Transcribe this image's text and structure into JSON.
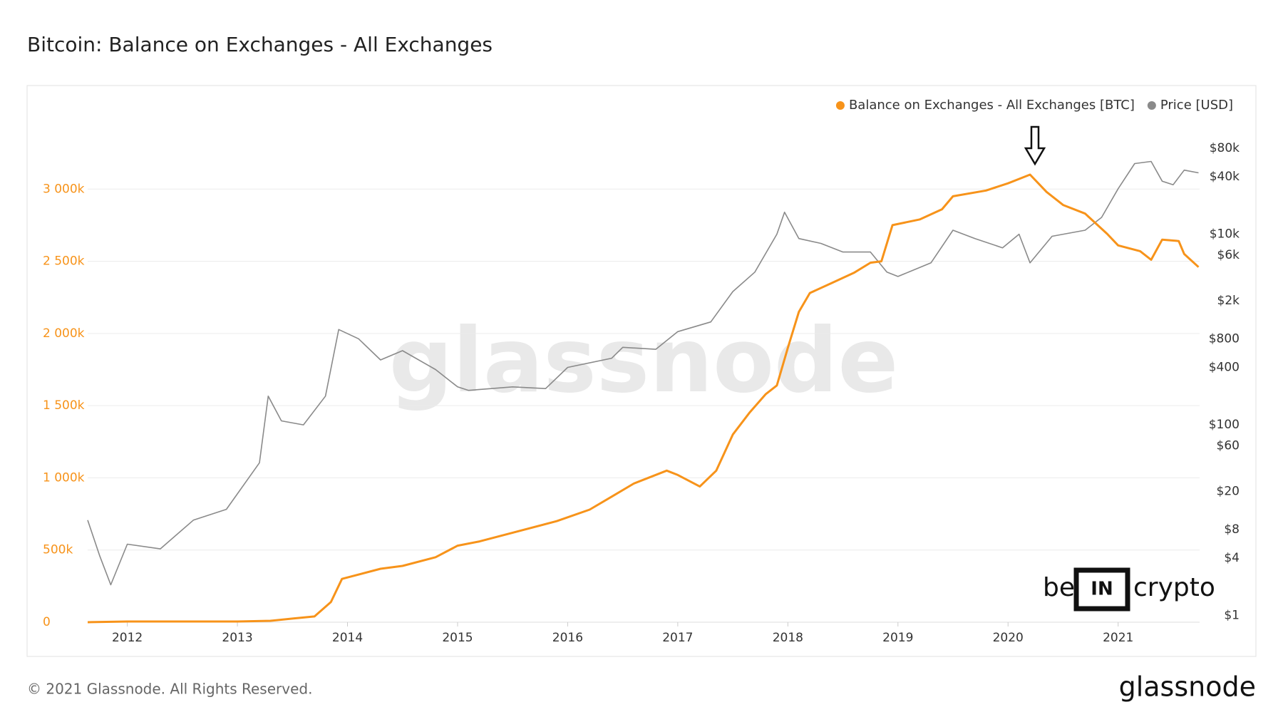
{
  "chart_data": {
    "type": "line",
    "title": "Bitcoin: Balance on Exchanges - All Exchanges",
    "xlim": [
      2011.64,
      2021.74
    ],
    "xticks": [
      2012,
      2013,
      2014,
      2015,
      2016,
      2017,
      2018,
      2019,
      2020,
      2021
    ],
    "ylim": [
      0,
      3500000
    ],
    "yticks": [
      0,
      {
        "value": 500000,
        "label": "500k"
      },
      {
        "value": 1000000,
        "label": "1 000k"
      },
      {
        "value": 1500000,
        "label": "1 500k"
      },
      {
        "value": 2000000,
        "label": "2 000k"
      },
      {
        "value": 2500000,
        "label": "2 500k"
      },
      {
        "value": 3000000,
        "label": "3 000k"
      }
    ],
    "y2lim": [
      0.85,
      170000
    ],
    "y2log": true,
    "y2ticks": [
      {
        "value": 1,
        "label": "$1"
      },
      {
        "value": 4,
        "label": "$4"
      },
      {
        "value": 8,
        "label": "$8"
      },
      {
        "value": 20,
        "label": "$20"
      },
      {
        "value": 60,
        "label": "$60"
      },
      {
        "value": 100,
        "label": "$100"
      },
      {
        "value": 400,
        "label": "$400"
      },
      {
        "value": 800,
        "label": "$800"
      },
      {
        "value": 2000,
        "label": "$2k"
      },
      {
        "value": 6000,
        "label": "$6k"
      },
      {
        "value": 10000,
        "label": "$10k"
      },
      {
        "value": 40000,
        "label": "$40k"
      },
      {
        "value": 80000,
        "label": "$80k"
      }
    ],
    "grid": true,
    "series": [
      {
        "name": "Balance on Exchanges - All Exchanges [BTC]",
        "color": "#f7931a",
        "x": [
          2011.64,
          2012.0,
          2013.0,
          2013.3,
          2013.5,
          2013.7,
          2013.85,
          2013.95,
          2014.0,
          2014.3,
          2014.5,
          2014.8,
          2015.0,
          2015.2,
          2015.5,
          2015.9,
          2016.2,
          2016.4,
          2016.6,
          2016.9,
          2017.0,
          2017.2,
          2017.35,
          2017.5,
          2017.65,
          2017.8,
          2017.9,
          2018.0,
          2018.1,
          2018.2,
          2018.4,
          2018.6,
          2018.75,
          2018.85,
          2018.95,
          2019.2,
          2019.4,
          2019.5,
          2019.8,
          2020.0,
          2020.2,
          2020.35,
          2020.5,
          2020.7,
          2020.9,
          2021.0,
          2021.2,
          2021.3,
          2021.4,
          2021.55,
          2021.6,
          2021.73
        ],
        "values": [
          0,
          5000,
          5000,
          10000,
          25000,
          40000,
          140000,
          300000,
          310000,
          370000,
          390000,
          450000,
          530000,
          560000,
          620000,
          700000,
          780000,
          870000,
          960000,
          1050000,
          1020000,
          940000,
          1050000,
          1300000,
          1450000,
          1580000,
          1640000,
          1900000,
          2150000,
          2280000,
          2350000,
          2420000,
          2490000,
          2500000,
          2750000,
          2790000,
          2860000,
          2950000,
          2990000,
          3040000,
          3100000,
          2980000,
          2890000,
          2830000,
          2690000,
          2610000,
          2570000,
          2510000,
          2650000,
          2640000,
          2550000,
          2460000
        ]
      },
      {
        "name": "Price [USD]",
        "color": "#8a8a8a",
        "axis": "y2",
        "x": [
          2011.64,
          2011.75,
          2011.85,
          2012.0,
          2012.3,
          2012.6,
          2012.9,
          2013.2,
          2013.28,
          2013.4,
          2013.6,
          2013.8,
          2013.92,
          2014.1,
          2014.3,
          2014.5,
          2014.8,
          2015.0,
          2015.1,
          2015.5,
          2015.8,
          2016.0,
          2016.4,
          2016.5,
          2016.8,
          2017.0,
          2017.3,
          2017.5,
          2017.7,
          2017.9,
          2017.97,
          2018.1,
          2018.3,
          2018.5,
          2018.75,
          2018.9,
          2019.0,
          2019.3,
          2019.5,
          2019.7,
          2019.95,
          2020.1,
          2020.2,
          2020.4,
          2020.7,
          2020.85,
          2021.0,
          2021.15,
          2021.3,
          2021.4,
          2021.5,
          2021.6,
          2021.73
        ],
        "values": [
          10,
          4.2,
          2.1,
          5.6,
          5,
          10,
          13,
          40,
          200,
          110,
          100,
          200,
          1000,
          800,
          480,
          600,
          380,
          250,
          230,
          250,
          240,
          400,
          500,
          650,
          620,
          950,
          1200,
          2500,
          4000,
          10000,
          17000,
          9000,
          8000,
          6500,
          6500,
          4000,
          3600,
          5000,
          11000,
          9000,
          7200,
          10000,
          5000,
          9500,
          11000,
          15000,
          30000,
          55000,
          58000,
          36000,
          33000,
          47000,
          44000
        ]
      }
    ]
  },
  "watermark": "glassnode",
  "badge": {
    "left": "be",
    "middle": "IN",
    "right": "crypto"
  },
  "footer": {
    "copyright": "© 2021 Glassnode. All Rights Reserved.",
    "brand": "glassnode"
  }
}
